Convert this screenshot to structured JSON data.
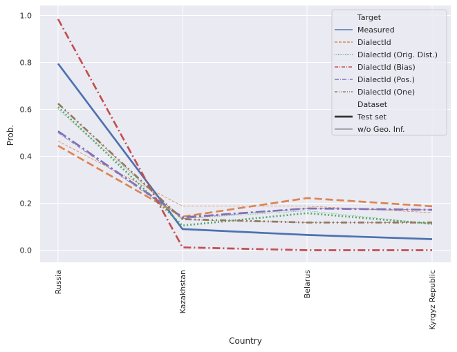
{
  "chart_data": {
    "type": "line",
    "xlabel": "Country",
    "ylabel": "Prob.",
    "categories": [
      "Russia",
      "Kazakhstan",
      "Belarus",
      "Kyrgyz Republic"
    ],
    "ylim": [
      -0.05,
      1.04
    ],
    "yticks": [
      0.0,
      0.2,
      0.4,
      0.6,
      0.8,
      1.0
    ],
    "ytick_labels": [
      "0.0",
      "0.2",
      "0.4",
      "0.6",
      "0.8",
      "1.0"
    ],
    "grid": true,
    "legend_position": "top-right",
    "legend": {
      "hue_title": "Target",
      "size_title": "Dataset",
      "size_entries": [
        "Test set",
        "w/o Geo. Inf."
      ]
    },
    "series": [
      {
        "name": "Measured",
        "dataset": "Test set",
        "color": "#4c72b0",
        "dash": "solid",
        "values": [
          0.795,
          0.09,
          0.065,
          0.047
        ]
      },
      {
        "name": "DialectId",
        "dataset": "Test set",
        "color": "#dd8452",
        "dash": "dashed",
        "values": [
          0.445,
          0.143,
          0.222,
          0.187
        ]
      },
      {
        "name": "DialectId (Orig. Dist.)",
        "dataset": "Test set",
        "color": "#55a868",
        "dash": "dotted",
        "values": [
          0.61,
          0.105,
          0.158,
          0.112
        ]
      },
      {
        "name": "DialectId (Bias)",
        "dataset": "Test set",
        "color": "#c44e52",
        "dash": "dashdot",
        "values": [
          0.985,
          0.012,
          0.0,
          0.0
        ]
      },
      {
        "name": "DialectId (Pos.)",
        "dataset": "Test set",
        "color": "#8172b3",
        "dash": "dashdot2",
        "values": [
          0.507,
          0.14,
          0.178,
          0.172
        ]
      },
      {
        "name": "DialectId (One)",
        "dataset": "Test set",
        "color": "#937860",
        "dash": "dashdot3",
        "values": [
          0.625,
          0.132,
          0.118,
          0.118
        ]
      },
      {
        "name": "DialectId",
        "dataset": "w/o Geo. Inf.",
        "color": "#dd8452",
        "dash": "dashed",
        "values": [
          0.465,
          0.188,
          0.188,
          0.16
        ]
      },
      {
        "name": "DialectId (Orig. Dist.)",
        "dataset": "w/o Geo. Inf.",
        "color": "#55a868",
        "dash": "dotted",
        "values": [
          0.6,
          0.135,
          0.168,
          0.112
        ]
      },
      {
        "name": "DialectId (Pos.)",
        "dataset": "w/o Geo. Inf.",
        "color": "#8172b3",
        "dash": "dashdot2",
        "values": [
          0.5,
          0.135,
          0.178,
          0.172
        ]
      },
      {
        "name": "DialectId (One)",
        "dataset": "w/o Geo. Inf.",
        "color": "#937860",
        "dash": "dashdot3",
        "values": [
          0.622,
          0.13,
          0.118,
          0.118
        ]
      }
    ]
  }
}
